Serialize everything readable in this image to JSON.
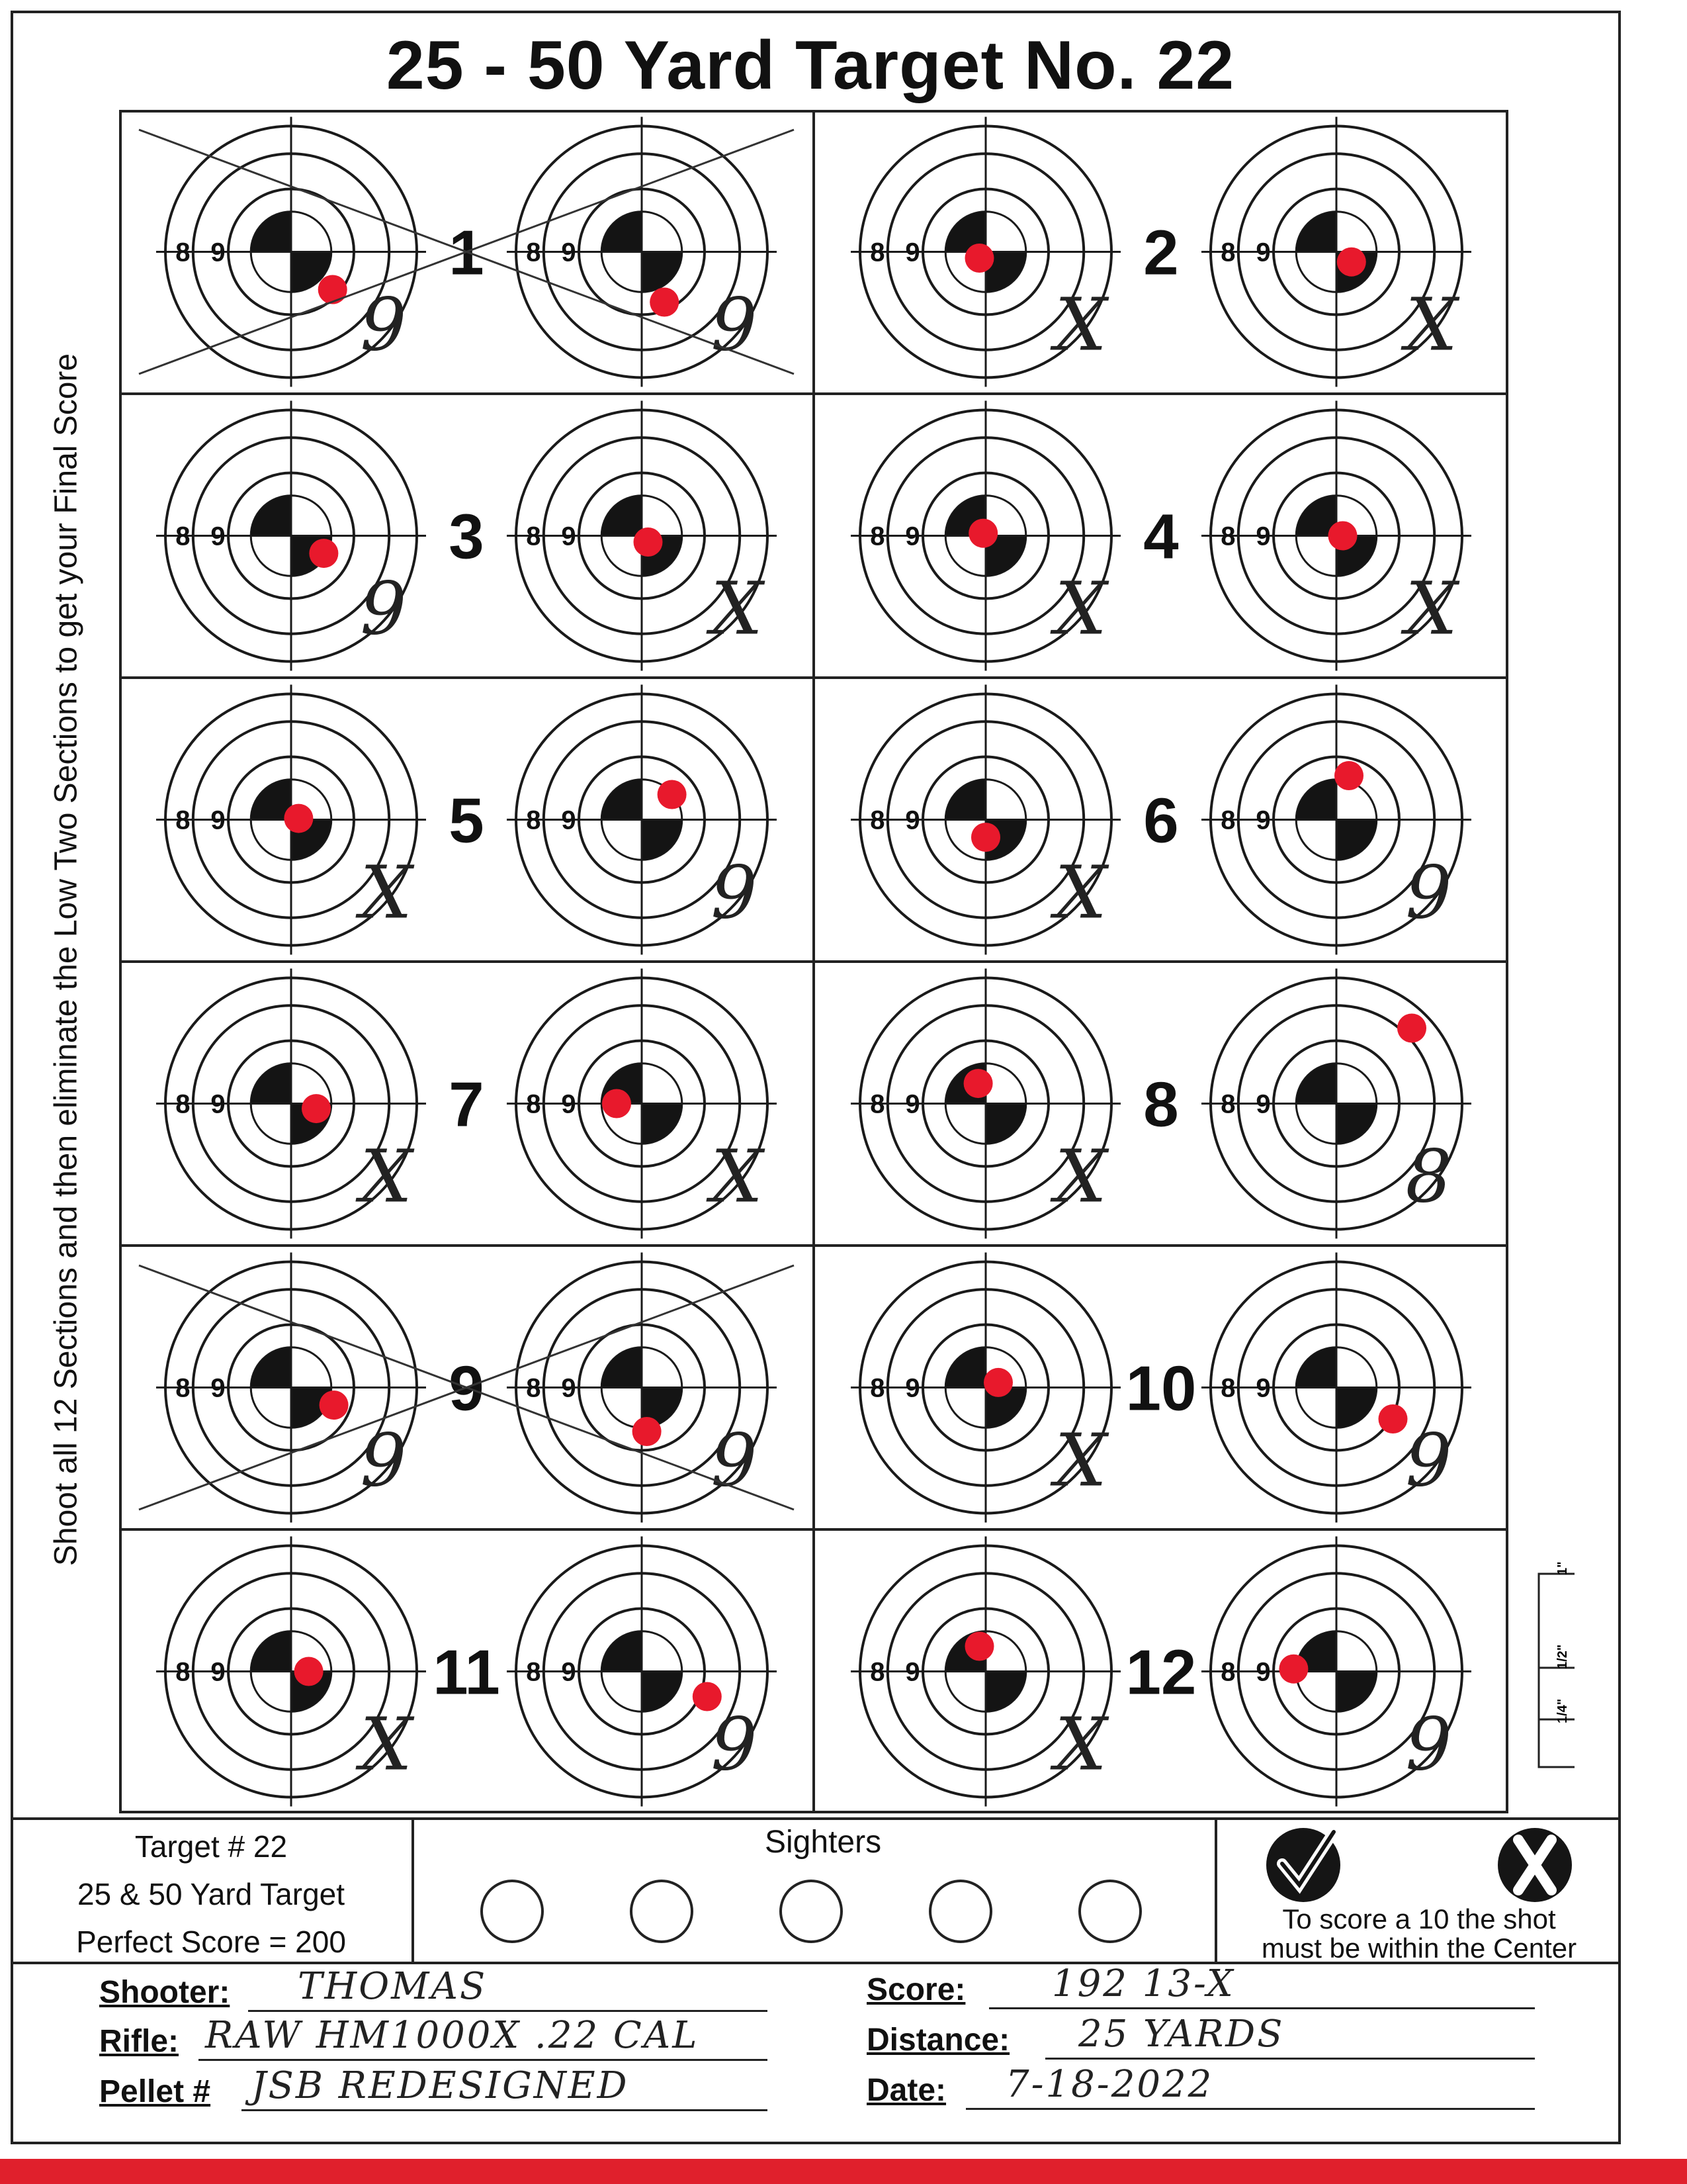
{
  "title": "25 - 50 Yard Target No. 22",
  "side_instruction": "Shoot all 12 Sections and then eliminate the Low Two Sections to get your Final Score",
  "ring_labels": [
    "8",
    "9"
  ],
  "sections": [
    {
      "number": "1",
      "shots": [
        {
          "mark": "9",
          "dx": 0.33,
          "dy": 0.3
        },
        {
          "mark": "9",
          "dx": 0.18,
          "dy": 0.4
        }
      ],
      "crossed_out": true
    },
    {
      "number": "2",
      "shots": [
        {
          "mark": "X",
          "dx": -0.05,
          "dy": 0.05
        },
        {
          "mark": "X",
          "dx": 0.12,
          "dy": 0.08
        }
      ],
      "crossed_out": false
    },
    {
      "number": "3",
      "shots": [
        {
          "mark": "9",
          "dx": 0.26,
          "dy": 0.14
        },
        {
          "mark": "X",
          "dx": 0.05,
          "dy": 0.05
        }
      ],
      "crossed_out": false
    },
    {
      "number": "4",
      "shots": [
        {
          "mark": "X",
          "dx": -0.02,
          "dy": -0.02
        },
        {
          "mark": "X",
          "dx": 0.05,
          "dy": 0.0
        }
      ],
      "crossed_out": false
    },
    {
      "number": "5",
      "shots": [
        {
          "mark": "X",
          "dx": 0.06,
          "dy": -0.01
        },
        {
          "mark": "9",
          "dx": 0.24,
          "dy": -0.2
        }
      ],
      "crossed_out": false
    },
    {
      "number": "6",
      "shots": [
        {
          "mark": "X",
          "dx": 0.0,
          "dy": 0.14
        },
        {
          "mark": "9",
          "dx": 0.1,
          "dy": -0.35
        }
      ],
      "crossed_out": false
    },
    {
      "number": "7",
      "shots": [
        {
          "mark": "X",
          "dx": 0.2,
          "dy": 0.04
        },
        {
          "mark": "X",
          "dx": -0.2,
          "dy": 0.0
        }
      ],
      "crossed_out": false
    },
    {
      "number": "8",
      "shots": [
        {
          "mark": "X",
          "dx": -0.06,
          "dy": -0.16
        },
        {
          "mark": "8",
          "dx": 0.6,
          "dy": -0.6
        }
      ],
      "crossed_out": false
    },
    {
      "number": "9",
      "shots": [
        {
          "mark": "9",
          "dx": 0.34,
          "dy": 0.14
        },
        {
          "mark": "9",
          "dx": 0.04,
          "dy": 0.35
        }
      ],
      "crossed_out": true
    },
    {
      "number": "10",
      "shots": [
        {
          "mark": "X",
          "dx": 0.1,
          "dy": -0.04
        },
        {
          "mark": "9",
          "dx": 0.45,
          "dy": 0.25
        }
      ],
      "crossed_out": false
    },
    {
      "number": "11",
      "shots": [
        {
          "mark": "X",
          "dx": 0.14,
          "dy": 0.0
        },
        {
          "mark": "9",
          "dx": 0.52,
          "dy": 0.2
        }
      ],
      "crossed_out": false
    },
    {
      "number": "12",
      "shots": [
        {
          "mark": "X",
          "dx": -0.05,
          "dy": -0.2
        },
        {
          "mark": "9",
          "dx": -0.34,
          "dy": -0.02
        }
      ],
      "crossed_out": false
    }
  ],
  "info": {
    "line1": "Target # 22",
    "line2": "25 & 50 Yard Target",
    "line3": "Perfect Score = 200"
  },
  "sighters": {
    "label": "Sighters",
    "count": 5
  },
  "scoring_rule": {
    "line1": "To score a 10 the shot",
    "line2": "must be within the Center"
  },
  "scale_labels": [
    "1\"",
    "1/2\"",
    "1/4\""
  ],
  "fields": {
    "shooter_label": "Shooter:",
    "shooter_value": "THOMAS",
    "rifle_label": "Rifle:",
    "rifle_value": "RAW HM1000X  .22 CAL",
    "pellet_label": "Pellet #",
    "pellet_value": "JSB REDESIGNED",
    "score_label": "Score:",
    "score_value": "192    13-X",
    "distance_label": "Distance:",
    "distance_value": "25 YARDS",
    "date_label": "Date:",
    "date_value": "7-18-2022"
  },
  "colors": {
    "hole": "#e8192c",
    "ink": "#1a1a1a",
    "strip": "#e0202c"
  }
}
